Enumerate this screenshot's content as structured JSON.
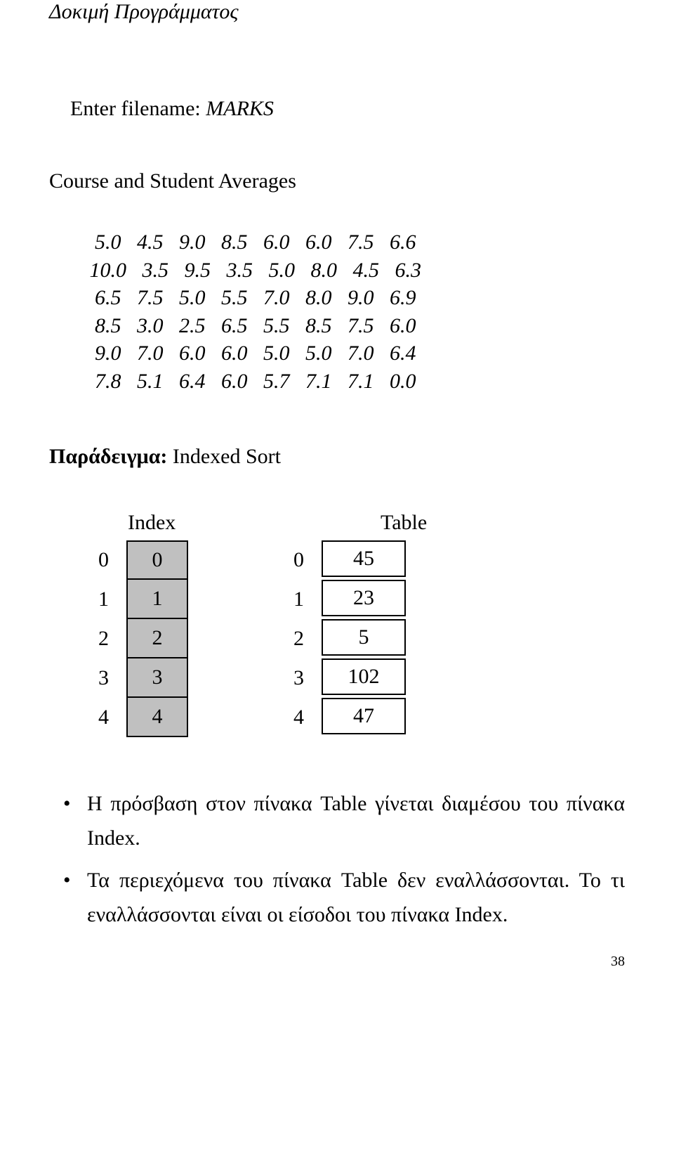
{
  "title": "Δοκιμή Προγράμματος",
  "prompt": "Enter filename: ",
  "filename": "MARKS",
  "subtitle": "Course and Student Averages",
  "data_rows": [
    "  5.0   4.5   9.0   8.5   6.0   6.0   7.5   6.6",
    " 10.0   3.5   9.5   3.5   5.0   8.0   4.5   6.3",
    "  6.5   7.5   5.0   5.5   7.0   8.0   9.0   6.9",
    "  8.5   3.0   2.5   6.5   5.5   8.5   7.5   6.0",
    "  9.0   7.0   6.0   6.0   5.0   5.0   7.0   6.4",
    "  7.8   5.1   6.4   6.0   5.7   7.1   7.1   0.0"
  ],
  "example_label_bold": "Παράδειγμα:",
  "example_label_rest": " Indexed Sort",
  "diagram": {
    "index_header": "Index",
    "table_header": "Table",
    "index_cell_bg": "#c0c0c0",
    "rows": [
      {
        "idx_label": "0",
        "idx_val": "0",
        "tbl_label": "0",
        "tbl_val": "45"
      },
      {
        "idx_label": "1",
        "idx_val": "1",
        "tbl_label": "1",
        "tbl_val": "23"
      },
      {
        "idx_label": "2",
        "idx_val": "2",
        "tbl_label": "2",
        "tbl_val": "5"
      },
      {
        "idx_label": "3",
        "idx_val": "3",
        "tbl_label": "3",
        "tbl_val": "102"
      },
      {
        "idx_label": "4",
        "idx_val": "4",
        "tbl_label": "4",
        "tbl_val": "47"
      }
    ]
  },
  "bullets": [
    "Η πρόσβαση στον πίνακα Table γίνεται διαμέσου του πίνακα Index.",
    "Τα περιεχόμενα του πίνακα Table δεν εναλλάσσονται. Το τι εναλλάσσονται είναι οι είσοδοι του πίνακα Index."
  ],
  "page_number": "38"
}
